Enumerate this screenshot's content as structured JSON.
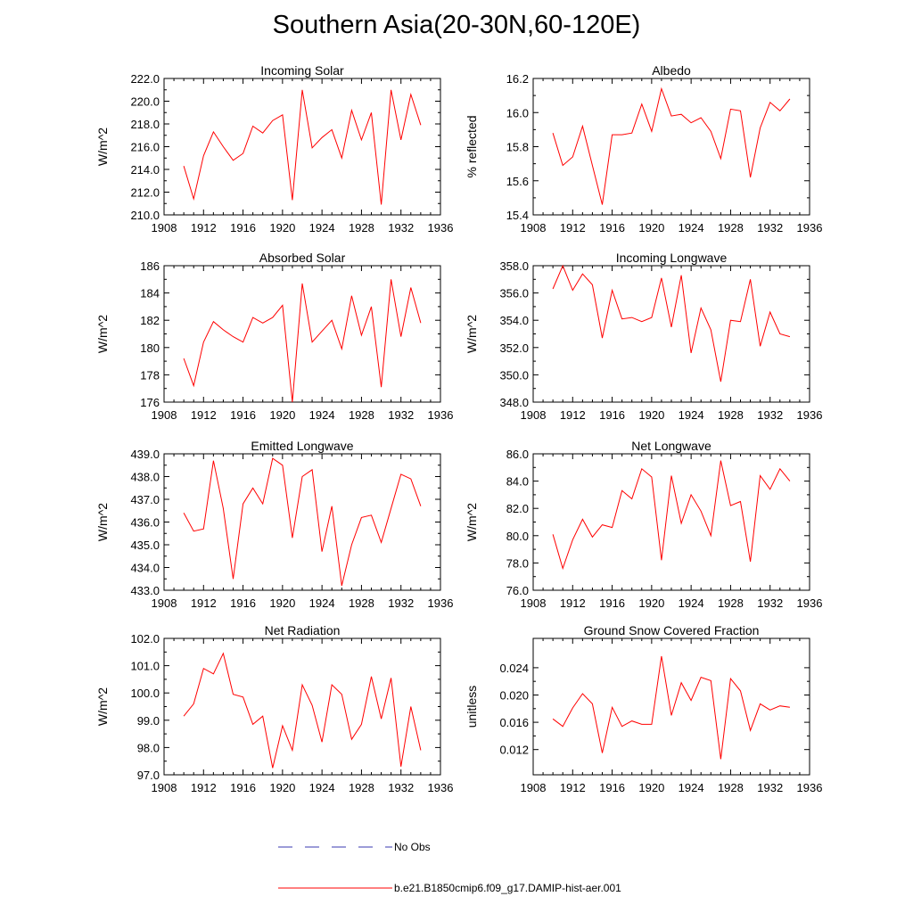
{
  "title": "Southern Asia(20-30N,60-120E)",
  "colors": {
    "model": "#ff0000",
    "obs": "#3a3ab0",
    "axis": "#000000"
  },
  "legend": {
    "obs_label": "No Obs",
    "model_label": "b.e21.B1850cmip6.f09_g17.DAMIP-hist-aer.001"
  },
  "chart_data": [
    {
      "type": "line",
      "title": "Incoming Solar",
      "ylabel": "W/m^2",
      "xlim": [
        1908,
        1936
      ],
      "ylim": [
        210.0,
        222.0
      ],
      "x_ticks": [
        1908,
        1912,
        1916,
        1920,
        1924,
        1928,
        1932,
        1936
      ],
      "y_ticks": [
        "210.0",
        "212.0",
        "214.0",
        "216.0",
        "218.0",
        "220.0",
        "222.0"
      ],
      "x": [
        1910,
        1911,
        1912,
        1913,
        1914,
        1915,
        1916,
        1917,
        1918,
        1919,
        1920,
        1921,
        1922,
        1923,
        1924,
        1925,
        1926,
        1927,
        1928,
        1929,
        1930,
        1931,
        1932,
        1933,
        1934
      ],
      "series": [
        {
          "values": [
            214.3,
            211.4,
            215.2,
            217.3,
            216.0,
            214.8,
            215.4,
            217.8,
            217.2,
            218.3,
            218.8,
            211.3,
            221.0,
            215.9,
            216.8,
            217.5,
            215.0,
            219.2,
            216.6,
            219.0,
            210.9,
            221.0,
            216.6,
            220.6,
            217.9
          ]
        }
      ]
    },
    {
      "type": "line",
      "title": "Albedo",
      "ylabel": "% reflected",
      "xlim": [
        1908,
        1936
      ],
      "ylim": [
        15.4,
        16.2
      ],
      "x_ticks": [
        1908,
        1912,
        1916,
        1920,
        1924,
        1928,
        1932,
        1936
      ],
      "y_ticks": [
        "15.4",
        "15.6",
        "15.8",
        "16.0",
        "16.2"
      ],
      "x": [
        1910,
        1911,
        1912,
        1913,
        1914,
        1915,
        1916,
        1917,
        1918,
        1919,
        1920,
        1921,
        1922,
        1923,
        1924,
        1925,
        1926,
        1927,
        1928,
        1929,
        1930,
        1931,
        1932,
        1933,
        1934
      ],
      "series": [
        {
          "values": [
            15.88,
            15.69,
            15.74,
            15.92,
            15.69,
            15.46,
            15.87,
            15.87,
            15.88,
            16.05,
            15.89,
            16.14,
            15.98,
            15.99,
            15.94,
            15.97,
            15.89,
            15.73,
            16.02,
            16.01,
            15.62,
            15.91,
            16.06,
            16.01,
            16.08
          ]
        }
      ]
    },
    {
      "type": "line",
      "title": "Absorbed Solar",
      "ylabel": "W/m^2",
      "xlim": [
        1908,
        1936
      ],
      "ylim": [
        176,
        186
      ],
      "x_ticks": [
        1908,
        1912,
        1916,
        1920,
        1924,
        1928,
        1932,
        1936
      ],
      "y_ticks": [
        "176",
        "178",
        "180",
        "182",
        "184",
        "186"
      ],
      "x": [
        1910,
        1911,
        1912,
        1913,
        1914,
        1915,
        1916,
        1917,
        1918,
        1919,
        1920,
        1921,
        1922,
        1923,
        1924,
        1925,
        1926,
        1927,
        1928,
        1929,
        1930,
        1931,
        1932,
        1933,
        1934
      ],
      "series": [
        {
          "values": [
            179.2,
            177.2,
            180.4,
            181.9,
            181.3,
            180.8,
            180.4,
            182.2,
            181.8,
            182.2,
            183.1,
            176.0,
            184.7,
            180.4,
            181.2,
            182.0,
            179.9,
            183.8,
            180.9,
            183.0,
            177.1,
            185.0,
            180.8,
            184.4,
            181.8
          ]
        }
      ]
    },
    {
      "type": "line",
      "title": "Incoming Longwave",
      "ylabel": "W/m^2",
      "xlim": [
        1908,
        1936
      ],
      "ylim": [
        348.0,
        358.0
      ],
      "x_ticks": [
        1908,
        1912,
        1916,
        1920,
        1924,
        1928,
        1932,
        1936
      ],
      "y_ticks": [
        "348.0",
        "350.0",
        "352.0",
        "354.0",
        "356.0",
        "358.0"
      ],
      "x": [
        1910,
        1911,
        1912,
        1913,
        1914,
        1915,
        1916,
        1917,
        1918,
        1919,
        1920,
        1921,
        1922,
        1923,
        1924,
        1925,
        1926,
        1927,
        1928,
        1929,
        1930,
        1931,
        1932,
        1933,
        1934
      ],
      "series": [
        {
          "values": [
            356.3,
            358.0,
            356.2,
            357.4,
            356.6,
            352.7,
            356.2,
            354.1,
            354.2,
            353.9,
            354.2,
            357.1,
            353.5,
            357.3,
            351.6,
            354.9,
            353.3,
            349.5,
            354.0,
            353.9,
            357.0,
            352.1,
            354.6,
            353.0,
            352.8
          ]
        }
      ]
    },
    {
      "type": "line",
      "title": "Emitted Longwave",
      "ylabel": "W/m^2",
      "xlim": [
        1908,
        1936
      ],
      "ylim": [
        433.0,
        439.0
      ],
      "x_ticks": [
        1908,
        1912,
        1916,
        1920,
        1924,
        1928,
        1932,
        1936
      ],
      "y_ticks": [
        "433.0",
        "434.0",
        "435.0",
        "436.0",
        "437.0",
        "438.0",
        "439.0"
      ],
      "x": [
        1910,
        1911,
        1912,
        1913,
        1914,
        1915,
        1916,
        1917,
        1918,
        1919,
        1920,
        1921,
        1922,
        1923,
        1924,
        1925,
        1926,
        1927,
        1928,
        1929,
        1930,
        1931,
        1932,
        1933,
        1934
      ],
      "series": [
        {
          "values": [
            436.4,
            435.6,
            435.7,
            438.7,
            436.6,
            433.5,
            436.8,
            437.5,
            436.8,
            438.8,
            438.5,
            435.3,
            438.0,
            438.3,
            434.7,
            436.7,
            433.2,
            435.0,
            436.2,
            436.3,
            435.1,
            436.6,
            438.1,
            437.9,
            436.7
          ]
        }
      ]
    },
    {
      "type": "line",
      "title": "Net Longwave",
      "ylabel": "W/m^2",
      "xlim": [
        1908,
        1936
      ],
      "ylim": [
        76.0,
        86.0
      ],
      "x_ticks": [
        1908,
        1912,
        1916,
        1920,
        1924,
        1928,
        1932,
        1936
      ],
      "y_ticks": [
        "76.0",
        "78.0",
        "80.0",
        "82.0",
        "84.0",
        "86.0"
      ],
      "x": [
        1910,
        1911,
        1912,
        1913,
        1914,
        1915,
        1916,
        1917,
        1918,
        1919,
        1920,
        1921,
        1922,
        1923,
        1924,
        1925,
        1926,
        1927,
        1928,
        1929,
        1930,
        1931,
        1932,
        1933,
        1934
      ],
      "series": [
        {
          "values": [
            80.1,
            77.6,
            79.7,
            81.2,
            79.9,
            80.8,
            80.6,
            83.3,
            82.7,
            84.9,
            84.3,
            78.2,
            84.4,
            80.9,
            83.0,
            81.8,
            80.0,
            85.5,
            82.2,
            82.5,
            78.1,
            84.4,
            83.4,
            84.9,
            84.0
          ]
        }
      ]
    },
    {
      "type": "line",
      "title": "Net Radiation",
      "ylabel": "W/m^2",
      "xlim": [
        1908,
        1936
      ],
      "ylim": [
        97.0,
        102.0
      ],
      "x_ticks": [
        1908,
        1912,
        1916,
        1920,
        1924,
        1928,
        1932,
        1936
      ],
      "y_ticks": [
        "97.0",
        "98.0",
        "99.0",
        "100.0",
        "101.0",
        "102.0"
      ],
      "x": [
        1910,
        1911,
        1912,
        1913,
        1914,
        1915,
        1916,
        1917,
        1918,
        1919,
        1920,
        1921,
        1922,
        1923,
        1924,
        1925,
        1926,
        1927,
        1928,
        1929,
        1930,
        1931,
        1932,
        1933,
        1934
      ],
      "series": [
        {
          "values": [
            99.15,
            99.6,
            100.9,
            100.7,
            101.45,
            99.95,
            99.85,
            98.85,
            99.15,
            97.25,
            98.8,
            97.9,
            100.3,
            99.55,
            98.2,
            100.3,
            99.95,
            98.3,
            98.85,
            100.6,
            99.05,
            100.55,
            97.3,
            99.5,
            97.9
          ]
        }
      ]
    },
    {
      "type": "line",
      "title": "Ground Snow Covered Fraction",
      "ylabel": "unitless",
      "xlim": [
        1908,
        1936
      ],
      "ylim": [
        0.0083,
        0.0283
      ],
      "x_ticks": [
        1908,
        1912,
        1916,
        1920,
        1924,
        1928,
        1932,
        1936
      ],
      "y_ticks": [
        "0.012",
        "0.016",
        "0.020",
        "0.024"
      ],
      "y_tick_values": [
        0.012,
        0.016,
        0.02,
        0.024
      ],
      "x": [
        1910,
        1911,
        1912,
        1913,
        1914,
        1915,
        1916,
        1917,
        1918,
        1919,
        1920,
        1921,
        1922,
        1923,
        1924,
        1925,
        1926,
        1927,
        1928,
        1929,
        1930,
        1931,
        1932,
        1933,
        1934
      ],
      "series": [
        {
          "values": [
            0.0165,
            0.0154,
            0.0181,
            0.0202,
            0.0187,
            0.0115,
            0.0182,
            0.0154,
            0.0162,
            0.0157,
            0.0157,
            0.0257,
            0.017,
            0.0218,
            0.0192,
            0.0226,
            0.0221,
            0.0106,
            0.0224,
            0.0206,
            0.0148,
            0.0187,
            0.0178,
            0.0184,
            0.0182
          ]
        }
      ]
    }
  ]
}
